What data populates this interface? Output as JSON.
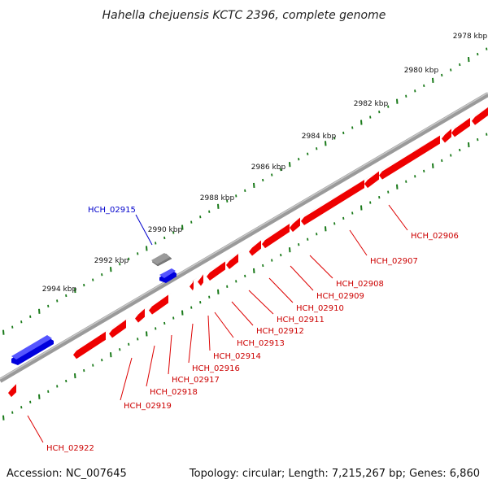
{
  "title": "Hahella chejuensis KCTC 2396, complete genome",
  "footer": {
    "accession": "Accession: NC_007645",
    "summary": "Topology: circular; Length: 7,215,267 bp; Genes: 6,860"
  },
  "colors": {
    "backbone": "#7f7f7f",
    "forward_gene": "#0000ee",
    "reverse_gene": "#ee0000",
    "other_gene": "#666666",
    "ruler": "#1a7a1a"
  },
  "ruler_labels": [
    "2978 kbp",
    "2980 kbp",
    "2982 kbp",
    "2984 kbp",
    "2986 kbp",
    "2988 kbp",
    "2990 kbp",
    "2992 kbp",
    "2994 kbp"
  ],
  "gene_labels": {
    "forward": [
      "HCH_02915"
    ],
    "reverse": [
      "HCH_02906",
      "HCH_02907",
      "HCH_02908",
      "HCH_02909",
      "HCH_02910",
      "HCH_02911",
      "HCH_02912",
      "HCH_02913",
      "HCH_02914",
      "HCH_02916",
      "HCH_02917",
      "HCH_02918",
      "HCH_02919",
      "HCH_02922"
    ]
  }
}
